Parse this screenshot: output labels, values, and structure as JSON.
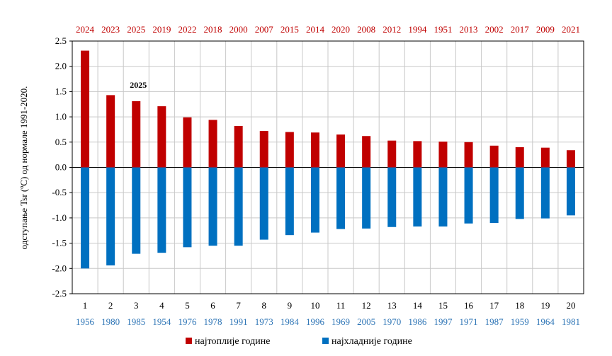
{
  "chart_data": {
    "type": "bar",
    "ylabel": "одступање Tsr (ºC)  од  нормале 1991-2020.",
    "ylim": [
      -2.5,
      2.5
    ],
    "yticks": [
      "2.5",
      "2.0",
      "1.5",
      "1.0",
      "0.5",
      "0.0",
      "-0.5",
      "-1.0",
      "-1.5",
      "-2.0",
      "-2.5"
    ],
    "yticks_values": [
      2.5,
      2.0,
      1.5,
      1.0,
      0.5,
      0.0,
      -0.5,
      -1.0,
      -1.5,
      -2.0,
      -2.5
    ],
    "grid": true,
    "categories": [
      "1",
      "2",
      "3",
      "4",
      "5",
      "6",
      "7",
      "8",
      "9",
      "10",
      "11",
      "12",
      "13",
      "14",
      "15",
      "16",
      "17",
      "18",
      "19",
      "20"
    ],
    "warm_years": [
      "2024",
      "2023",
      "2025",
      "2019",
      "2022",
      "2018",
      "2000",
      "2007",
      "2015",
      "2014",
      "2020",
      "2008",
      "2012",
      "1994",
      "1951",
      "2013",
      "2002",
      "2017",
      "2009",
      "2021"
    ],
    "cold_years": [
      "1956",
      "1980",
      "1985",
      "1954",
      "1976",
      "1978",
      "1991",
      "1973",
      "1984",
      "1996",
      "1969",
      "2005",
      "1970",
      "1986",
      "1997",
      "1971",
      "1987",
      "1959",
      "1964",
      "1981"
    ],
    "series": [
      {
        "name": "најтоплије године",
        "color": "#c00000",
        "values": [
          2.31,
          1.43,
          1.31,
          1.21,
          0.99,
          0.94,
          0.82,
          0.72,
          0.7,
          0.69,
          0.65,
          0.62,
          0.53,
          0.52,
          0.51,
          0.5,
          0.43,
          0.4,
          0.39,
          0.34
        ]
      },
      {
        "name": "најхладније године",
        "color": "#0070c0",
        "values": [
          -2.0,
          -1.94,
          -1.71,
          -1.69,
          -1.58,
          -1.55,
          -1.55,
          -1.43,
          -1.34,
          -1.29,
          -1.22,
          -1.21,
          -1.18,
          -1.17,
          -1.17,
          -1.11,
          -1.1,
          -1.02,
          -1.01,
          -0.95
        ]
      }
    ],
    "annotation": {
      "text": "2025",
      "category": "3"
    },
    "legend_position": "bottom"
  }
}
